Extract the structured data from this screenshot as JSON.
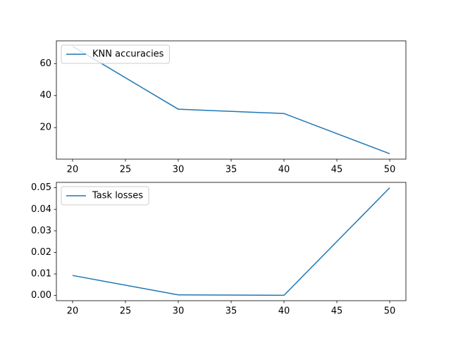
{
  "chart_data": [
    {
      "type": "line",
      "x": [
        20,
        30,
        40,
        50
      ],
      "series": [
        {
          "name": "KNN accuracies",
          "color": "#1f77b4",
          "values": [
            70.8,
            31.5,
            28.8,
            3.7
          ]
        }
      ],
      "xlim": [
        18.47,
        51.53
      ],
      "xticks": [
        20,
        25,
        30,
        35,
        40,
        45,
        50
      ],
      "ylim": [
        0.3,
        74.2
      ],
      "yticks": [
        20,
        40,
        60
      ],
      "legend": "upper left"
    },
    {
      "type": "line",
      "x": [
        20,
        30,
        40,
        50
      ],
      "series": [
        {
          "name": "Task losses",
          "color": "#1f77b4",
          "values": [
            0.0093,
            0.0003,
            0.0001,
            0.05
          ]
        }
      ],
      "xlim": [
        18.47,
        51.53
      ],
      "xticks": [
        20,
        25,
        30,
        35,
        40,
        45,
        50
      ],
      "ylim": [
        -0.0024,
        0.0525
      ],
      "yticks": [
        {
          "value": 0,
          "label": "0.00"
        },
        {
          "value": 0.01,
          "label": "0.01"
        },
        {
          "value": 0.02,
          "label": "0.02"
        },
        {
          "value": 0.03,
          "label": "0.03"
        },
        {
          "value": 0.04,
          "label": "0.04"
        },
        {
          "value": 0.05,
          "label": "0.05"
        }
      ],
      "legend": "upper left"
    }
  ]
}
